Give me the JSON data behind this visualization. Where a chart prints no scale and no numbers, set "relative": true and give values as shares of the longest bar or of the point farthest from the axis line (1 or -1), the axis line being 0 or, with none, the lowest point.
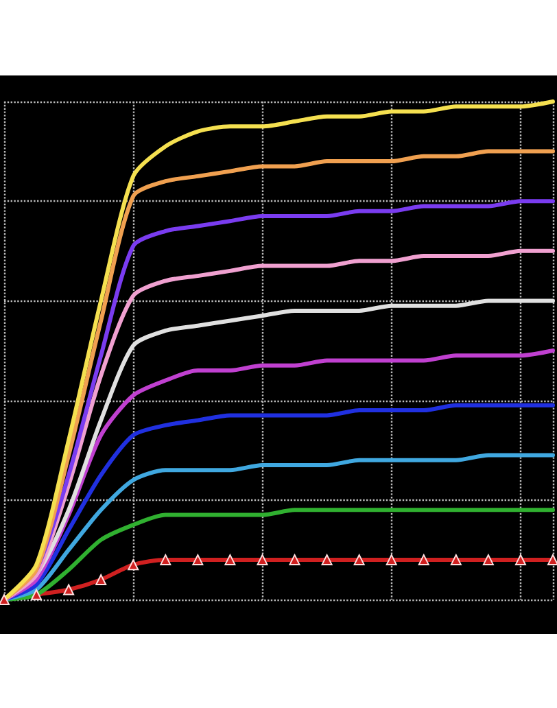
{
  "chart_data": {
    "type": "line",
    "relative": true,
    "grid": true,
    "marker": "none",
    "line_style": "solid",
    "categories": [
      null,
      null,
      null,
      null,
      null,
      null,
      null,
      null,
      null,
      null,
      null,
      null,
      null,
      null,
      null,
      null,
      null,
      null
    ],
    "series": [
      {
        "color": "#d02020",
        "marker": "triangle",
        "values": [
          0,
          0.01,
          0.02,
          0.04,
          0.07,
          0.08,
          0.08,
          0.08,
          0.08,
          0.08,
          0.08,
          0.08,
          0.08,
          0.08,
          0.08,
          0.08,
          0.08,
          0.08
        ]
      },
      {
        "color": "#30b030",
        "values": [
          0,
          0.01,
          0.06,
          0.12,
          0.15,
          0.17,
          0.17,
          0.17,
          0.17,
          0.18,
          0.18,
          0.18,
          0.18,
          0.18,
          0.18,
          0.18,
          0.18,
          0.18
        ]
      },
      {
        "color": "#40a8e0",
        "values": [
          0,
          0.02,
          0.1,
          0.18,
          0.24,
          0.26,
          0.26,
          0.26,
          0.27,
          0.27,
          0.27,
          0.28,
          0.28,
          0.28,
          0.28,
          0.29,
          0.29,
          0.29
        ]
      },
      {
        "color": "#2030e0",
        "values": [
          0,
          0.03,
          0.14,
          0.25,
          0.33,
          0.35,
          0.36,
          0.37,
          0.37,
          0.37,
          0.37,
          0.38,
          0.38,
          0.38,
          0.39,
          0.39,
          0.39,
          0.39
        ]
      },
      {
        "color": "#c040d0",
        "values": [
          0,
          0.04,
          0.17,
          0.33,
          0.41,
          0.44,
          0.46,
          0.46,
          0.47,
          0.47,
          0.48,
          0.48,
          0.48,
          0.48,
          0.49,
          0.49,
          0.49,
          0.5
        ]
      },
      {
        "color": "#e0e0e0",
        "values": [
          0,
          0.05,
          0.18,
          0.36,
          0.51,
          0.54,
          0.55,
          0.56,
          0.57,
          0.58,
          0.58,
          0.58,
          0.59,
          0.59,
          0.59,
          0.6,
          0.6,
          0.6
        ]
      },
      {
        "color": "#f0a0d0",
        "values": [
          0,
          0.05,
          0.23,
          0.45,
          0.61,
          0.64,
          0.65,
          0.66,
          0.67,
          0.67,
          0.67,
          0.68,
          0.68,
          0.69,
          0.69,
          0.69,
          0.7,
          0.7
        ]
      },
      {
        "color": "#7a3cf0",
        "values": [
          0,
          0.06,
          0.25,
          0.49,
          0.71,
          0.74,
          0.75,
          0.76,
          0.77,
          0.77,
          0.77,
          0.78,
          0.78,
          0.79,
          0.79,
          0.79,
          0.8,
          0.8
        ]
      },
      {
        "color": "#f0a050",
        "values": [
          0,
          0.06,
          0.29,
          0.56,
          0.81,
          0.84,
          0.85,
          0.86,
          0.87,
          0.87,
          0.88,
          0.88,
          0.88,
          0.89,
          0.89,
          0.9,
          0.9,
          0.9
        ]
      },
      {
        "color": "#f5e050",
        "values": [
          0,
          0.07,
          0.32,
          0.6,
          0.85,
          0.91,
          0.94,
          0.95,
          0.95,
          0.96,
          0.97,
          0.97,
          0.98,
          0.98,
          0.99,
          0.99,
          0.99,
          1
        ]
      }
    ]
  }
}
